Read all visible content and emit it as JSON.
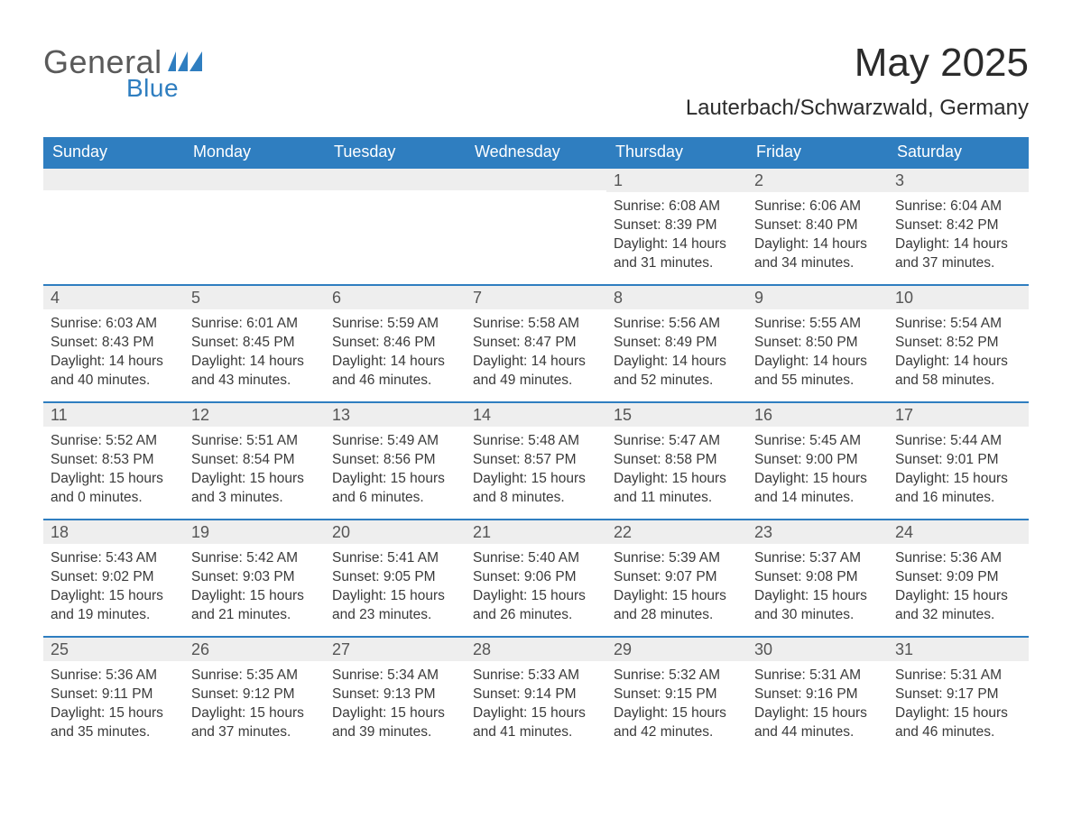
{
  "brand": {
    "name_part1": "General",
    "name_part2": "Blue",
    "text_color": "#5a5a5a",
    "accent_color": "#2f7ec0"
  },
  "title": "May 2025",
  "location": "Lauterbach/Schwarzwald, Germany",
  "colors": {
    "header_bg": "#2f7ec0",
    "header_text": "#ffffff",
    "daybar_bg": "#eeeeee",
    "daybar_border": "#2f7ec0",
    "body_text": "#3a3a3a",
    "page_bg": "#ffffff"
  },
  "weekdays": [
    "Sunday",
    "Monday",
    "Tuesday",
    "Wednesday",
    "Thursday",
    "Friday",
    "Saturday"
  ],
  "weeks": [
    [
      null,
      null,
      null,
      null,
      {
        "day": "1",
        "sunrise": "6:08 AM",
        "sunset": "8:39 PM",
        "daylight": "14 hours and 31 minutes."
      },
      {
        "day": "2",
        "sunrise": "6:06 AM",
        "sunset": "8:40 PM",
        "daylight": "14 hours and 34 minutes."
      },
      {
        "day": "3",
        "sunrise": "6:04 AM",
        "sunset": "8:42 PM",
        "daylight": "14 hours and 37 minutes."
      }
    ],
    [
      {
        "day": "4",
        "sunrise": "6:03 AM",
        "sunset": "8:43 PM",
        "daylight": "14 hours and 40 minutes."
      },
      {
        "day": "5",
        "sunrise": "6:01 AM",
        "sunset": "8:45 PM",
        "daylight": "14 hours and 43 minutes."
      },
      {
        "day": "6",
        "sunrise": "5:59 AM",
        "sunset": "8:46 PM",
        "daylight": "14 hours and 46 minutes."
      },
      {
        "day": "7",
        "sunrise": "5:58 AM",
        "sunset": "8:47 PM",
        "daylight": "14 hours and 49 minutes."
      },
      {
        "day": "8",
        "sunrise": "5:56 AM",
        "sunset": "8:49 PM",
        "daylight": "14 hours and 52 minutes."
      },
      {
        "day": "9",
        "sunrise": "5:55 AM",
        "sunset": "8:50 PM",
        "daylight": "14 hours and 55 minutes."
      },
      {
        "day": "10",
        "sunrise": "5:54 AM",
        "sunset": "8:52 PM",
        "daylight": "14 hours and 58 minutes."
      }
    ],
    [
      {
        "day": "11",
        "sunrise": "5:52 AM",
        "sunset": "8:53 PM",
        "daylight": "15 hours and 0 minutes."
      },
      {
        "day": "12",
        "sunrise": "5:51 AM",
        "sunset": "8:54 PM",
        "daylight": "15 hours and 3 minutes."
      },
      {
        "day": "13",
        "sunrise": "5:49 AM",
        "sunset": "8:56 PM",
        "daylight": "15 hours and 6 minutes."
      },
      {
        "day": "14",
        "sunrise": "5:48 AM",
        "sunset": "8:57 PM",
        "daylight": "15 hours and 8 minutes."
      },
      {
        "day": "15",
        "sunrise": "5:47 AM",
        "sunset": "8:58 PM",
        "daylight": "15 hours and 11 minutes."
      },
      {
        "day": "16",
        "sunrise": "5:45 AM",
        "sunset": "9:00 PM",
        "daylight": "15 hours and 14 minutes."
      },
      {
        "day": "17",
        "sunrise": "5:44 AM",
        "sunset": "9:01 PM",
        "daylight": "15 hours and 16 minutes."
      }
    ],
    [
      {
        "day": "18",
        "sunrise": "5:43 AM",
        "sunset": "9:02 PM",
        "daylight": "15 hours and 19 minutes."
      },
      {
        "day": "19",
        "sunrise": "5:42 AM",
        "sunset": "9:03 PM",
        "daylight": "15 hours and 21 minutes."
      },
      {
        "day": "20",
        "sunrise": "5:41 AM",
        "sunset": "9:05 PM",
        "daylight": "15 hours and 23 minutes."
      },
      {
        "day": "21",
        "sunrise": "5:40 AM",
        "sunset": "9:06 PM",
        "daylight": "15 hours and 26 minutes."
      },
      {
        "day": "22",
        "sunrise": "5:39 AM",
        "sunset": "9:07 PM",
        "daylight": "15 hours and 28 minutes."
      },
      {
        "day": "23",
        "sunrise": "5:37 AM",
        "sunset": "9:08 PM",
        "daylight": "15 hours and 30 minutes."
      },
      {
        "day": "24",
        "sunrise": "5:36 AM",
        "sunset": "9:09 PM",
        "daylight": "15 hours and 32 minutes."
      }
    ],
    [
      {
        "day": "25",
        "sunrise": "5:36 AM",
        "sunset": "9:11 PM",
        "daylight": "15 hours and 35 minutes."
      },
      {
        "day": "26",
        "sunrise": "5:35 AM",
        "sunset": "9:12 PM",
        "daylight": "15 hours and 37 minutes."
      },
      {
        "day": "27",
        "sunrise": "5:34 AM",
        "sunset": "9:13 PM",
        "daylight": "15 hours and 39 minutes."
      },
      {
        "day": "28",
        "sunrise": "5:33 AM",
        "sunset": "9:14 PM",
        "daylight": "15 hours and 41 minutes."
      },
      {
        "day": "29",
        "sunrise": "5:32 AM",
        "sunset": "9:15 PM",
        "daylight": "15 hours and 42 minutes."
      },
      {
        "day": "30",
        "sunrise": "5:31 AM",
        "sunset": "9:16 PM",
        "daylight": "15 hours and 44 minutes."
      },
      {
        "day": "31",
        "sunrise": "5:31 AM",
        "sunset": "9:17 PM",
        "daylight": "15 hours and 46 minutes."
      }
    ]
  ],
  "labels": {
    "sunrise": "Sunrise: ",
    "sunset": "Sunset: ",
    "daylight": "Daylight: "
  }
}
